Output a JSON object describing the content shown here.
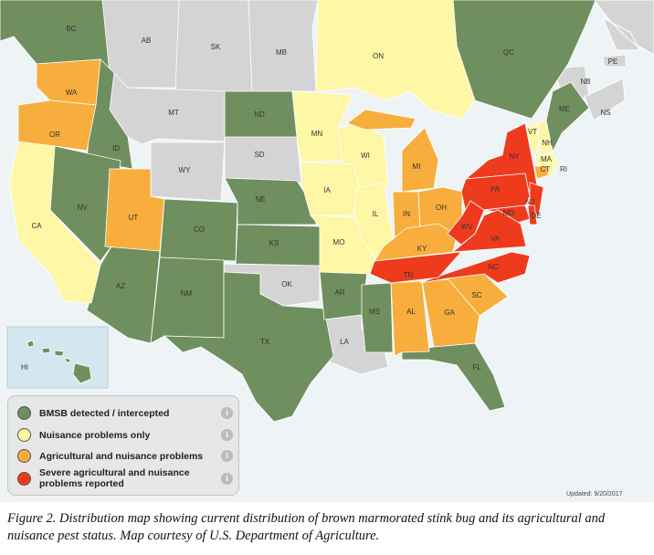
{
  "map": {
    "legend": [
      {
        "label": "BMSB detected / intercepted",
        "color": "#6f8f5f",
        "regions": [
          "BC",
          "QC",
          "ND",
          "ID",
          "NV",
          "NE",
          "CO",
          "KS",
          "AZ",
          "NM",
          "TX",
          "AR",
          "MS",
          "FL",
          "ME",
          "HI"
        ]
      },
      {
        "label": "Nuisance problems only",
        "color": "#fdf7a6",
        "regions": [
          "ON",
          "MN",
          "WI",
          "IA",
          "IL",
          "MO",
          "CA",
          "VT",
          "NH",
          "MA",
          "RI"
        ]
      },
      {
        "label": "Agricultural and nuisance problems",
        "color": "#f7ae3c",
        "regions": [
          "WA",
          "OR",
          "UT",
          "MI",
          "IN",
          "OH",
          "KY",
          "AL",
          "GA",
          "SC",
          "CT"
        ]
      },
      {
        "label": "Severe agricultural and nuisance problems reported",
        "color": "#ee3b1d",
        "regions": [
          "NY",
          "PA",
          "NJ",
          "MD",
          "DE",
          "WV",
          "VA",
          "NC",
          "TN"
        ]
      }
    ],
    "other_regions": {
      "color": "#d4d4d4",
      "regions": [
        "AB",
        "SK",
        "MB",
        "MT",
        "WY",
        "SD",
        "OK",
        "LA",
        "NB",
        "NS",
        "PE"
      ]
    },
    "info_icon": "i",
    "updated": "Updated: 9/20/2017",
    "caption": "Figure 2. Distribution map showing current distribution of brown marmorated stink bug and its agricultural and nuisance pest status. Map courtesy of U.S. Department of Agriculture."
  }
}
